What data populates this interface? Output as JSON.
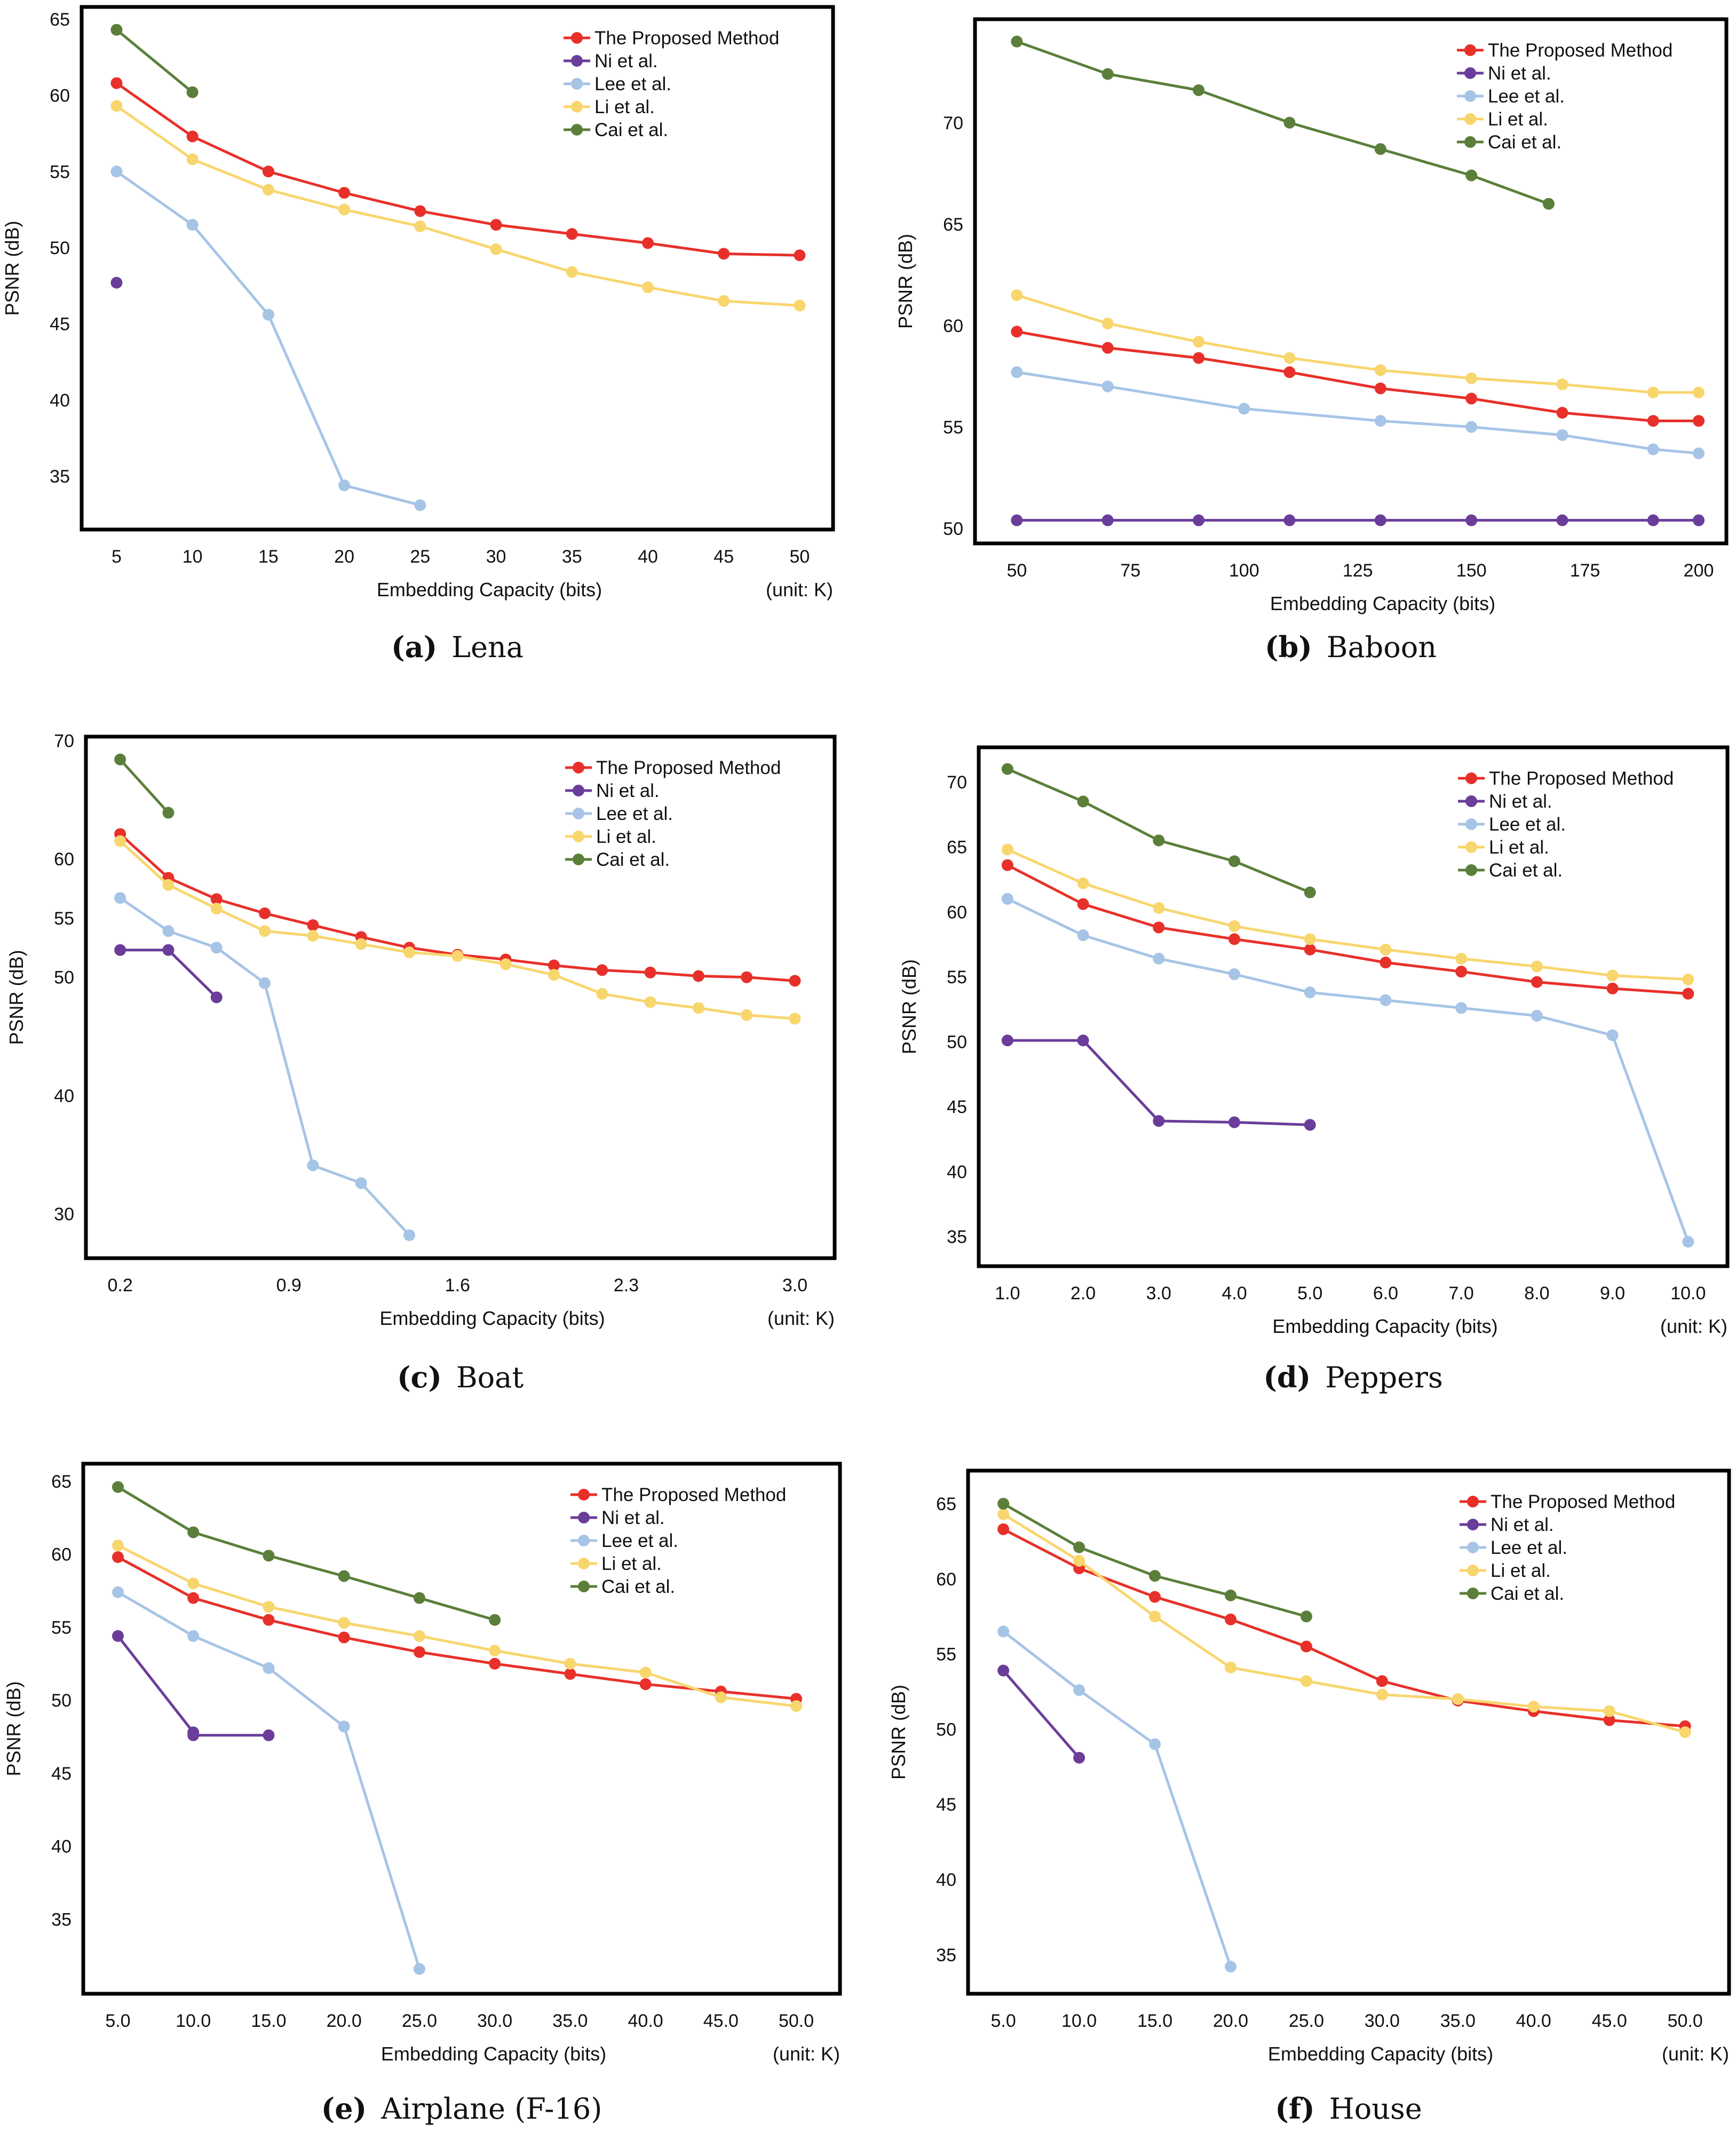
{
  "colors": {
    "The Proposed Method": "#e8302a",
    "Ni et al.": "#6a3d9a",
    "Lee et al.": "#a6c4e6",
    "Li et al.": "#f8d66e",
    "Cai et al.": "#5b7f3a"
  },
  "chart_data": [
    {
      "type": "line",
      "caption_letter": "(a)",
      "caption_name": "Lena",
      "xlabel": "Embedding Capacity (bits)",
      "ylabel": "PSNR (dB)",
      "unit_note": "(unit: K)",
      "xlim": [
        2.7,
        52.2
      ],
      "ylim": [
        31.5,
        65.8
      ],
      "grid": false,
      "legend": "top-right",
      "xticks": [
        [
          5,
          "5"
        ],
        [
          10,
          "10"
        ],
        [
          15,
          "15"
        ],
        [
          20,
          "20"
        ],
        [
          25,
          "25"
        ],
        [
          30,
          "30"
        ],
        [
          35,
          "35"
        ],
        [
          40,
          "40"
        ],
        [
          45,
          "45"
        ],
        [
          50,
          "50"
        ]
      ],
      "yticks": [
        [
          35,
          "35"
        ],
        [
          40,
          "40"
        ],
        [
          45,
          "45"
        ],
        [
          50,
          "50"
        ],
        [
          55,
          "55"
        ],
        [
          60,
          "60"
        ],
        [
          65,
          "65"
        ]
      ],
      "series": [
        {
          "name": "The Proposed Method",
          "x": [
            5,
            10,
            15,
            20,
            25,
            30,
            35,
            40,
            45,
            50
          ],
          "y": [
            60.8,
            57.3,
            55.0,
            53.6,
            52.4,
            51.5,
            50.9,
            50.3,
            49.6,
            49.5
          ]
        },
        {
          "name": "Ni et al.",
          "x": [
            5
          ],
          "y": [
            47.7
          ]
        },
        {
          "name": "Lee et al.",
          "x": [
            5,
            10,
            15,
            20,
            25
          ],
          "y": [
            55.0,
            51.5,
            45.6,
            34.4,
            33.1
          ]
        },
        {
          "name": "Li et al.",
          "x": [
            5,
            10,
            15,
            20,
            25,
            30,
            35,
            40,
            45,
            50
          ],
          "y": [
            59.3,
            55.8,
            53.8,
            52.5,
            51.4,
            49.9,
            48.4,
            47.4,
            46.5,
            46.2
          ]
        },
        {
          "name": "Cai et al.",
          "x": [
            5,
            10
          ],
          "y": [
            64.3,
            60.2
          ]
        }
      ]
    },
    {
      "type": "line",
      "caption_letter": "(b)",
      "caption_name": "Baboon",
      "xlabel": "Embedding Capacity (bits)",
      "ylabel": "PSNR (dB)",
      "unit_note": "",
      "xlim": [
        40.8,
        206.1
      ],
      "ylim": [
        49.26,
        75.1
      ],
      "grid": false,
      "legend": "top-right",
      "xticks": [
        [
          50,
          "50"
        ],
        [
          75,
          "75"
        ],
        [
          100,
          "100"
        ],
        [
          125,
          "125"
        ],
        [
          150,
          "150"
        ],
        [
          175,
          "175"
        ],
        [
          200,
          "200"
        ]
      ],
      "yticks": [
        [
          50,
          "50"
        ],
        [
          55,
          "55"
        ],
        [
          60,
          "60"
        ],
        [
          65,
          "65"
        ],
        [
          70,
          "70"
        ]
      ],
      "series": [
        {
          "name": "The Proposed Method",
          "x": [
            50,
            70,
            90,
            110,
            130,
            150,
            170,
            190,
            200
          ],
          "y": [
            59.7,
            58.9,
            58.4,
            57.7,
            56.9,
            56.4,
            55.7,
            55.3,
            55.3
          ]
        },
        {
          "name": "Ni et al.",
          "x": [
            50,
            70,
            90,
            110,
            130,
            150,
            170,
            190,
            200
          ],
          "y": [
            50.4,
            50.4,
            50.4,
            50.4,
            50.4,
            50.4,
            50.4,
            50.4,
            50.4
          ]
        },
        {
          "name": "Lee et al.",
          "x": [
            50,
            70,
            100,
            130,
            150,
            170,
            190,
            200
          ],
          "y": [
            57.7,
            57.0,
            55.9,
            55.3,
            55.0,
            54.6,
            53.9,
            53.7
          ]
        },
        {
          "name": "Li et al.",
          "x": [
            50,
            70,
            90,
            110,
            130,
            150,
            170,
            190,
            200
          ],
          "y": [
            61.5,
            60.1,
            59.2,
            58.4,
            57.8,
            57.4,
            57.1,
            56.7,
            56.7
          ]
        },
        {
          "name": "Cai et al.",
          "x": [
            50,
            70,
            90,
            110,
            130,
            150,
            167
          ],
          "y": [
            74.0,
            72.4,
            71.6,
            70.0,
            68.7,
            67.4,
            66.0
          ]
        }
      ]
    },
    {
      "type": "line",
      "caption_letter": "(c)",
      "caption_name": "Boat",
      "xlabel": "Embedding Capacity (bits)",
      "ylabel": "PSNR (dB)",
      "unit_note": "(unit: K)",
      "xlim": [
        0.058,
        3.165
      ],
      "ylim": [
        26.26,
        70.33
      ],
      "grid": false,
      "legend": "top-right",
      "xticks": [
        [
          0.2,
          "0.2"
        ],
        [
          0.9,
          "0.9"
        ],
        [
          1.6,
          "1.6"
        ],
        [
          2.3,
          "2.3"
        ],
        [
          3.0,
          "3.0"
        ]
      ],
      "yticks": [
        [
          30,
          "30"
        ],
        [
          40,
          "40"
        ],
        [
          50,
          "50"
        ],
        [
          55,
          "55"
        ],
        [
          60,
          "60"
        ],
        [
          70,
          "70"
        ]
      ],
      "series": [
        {
          "name": "The Proposed Method",
          "x": [
            0.2,
            0.4,
            0.6,
            0.8,
            1.0,
            1.2,
            1.4,
            1.6,
            1.8,
            2.0,
            2.2,
            2.4,
            2.6,
            2.8,
            3.0
          ],
          "y": [
            62.1,
            58.4,
            56.6,
            55.4,
            54.4,
            53.4,
            52.5,
            51.9,
            51.5,
            51.0,
            50.6,
            50.4,
            50.1,
            50.0,
            49.7
          ]
        },
        {
          "name": "Ni et al.",
          "x": [
            0.2,
            0.4,
            0.6
          ],
          "y": [
            52.3,
            52.3,
            48.3
          ]
        },
        {
          "name": "Lee et al.",
          "x": [
            0.2,
            0.4,
            0.6,
            0.8,
            1.0,
            1.2,
            1.4
          ],
          "y": [
            56.7,
            53.9,
            52.5,
            49.5,
            34.1,
            32.6,
            28.2
          ]
        },
        {
          "name": "Li et al.",
          "x": [
            0.2,
            0.4,
            0.6,
            0.8,
            1.0,
            1.2,
            1.4,
            1.6,
            1.8,
            2.0,
            2.2,
            2.4,
            2.6,
            2.8,
            3.0
          ],
          "y": [
            61.5,
            57.8,
            55.8,
            53.9,
            53.5,
            52.8,
            52.1,
            51.8,
            51.1,
            50.2,
            48.6,
            47.9,
            47.4,
            46.8,
            46.5
          ]
        },
        {
          "name": "Cai et al.",
          "x": [
            0.2,
            0.4
          ],
          "y": [
            68.4,
            63.9
          ]
        }
      ]
    },
    {
      "type": "line",
      "caption_letter": "(d)",
      "caption_name": "Peppers",
      "xlabel": "Embedding Capacity (bits)",
      "ylabel": "PSNR (dB)",
      "unit_note": "(unit: K)",
      "xlim": [
        0.62,
        10.52
      ],
      "ylim": [
        32.72,
        72.67
      ],
      "grid": false,
      "legend": "top-right",
      "xticks": [
        [
          1,
          "1.0"
        ],
        [
          2,
          "2.0"
        ],
        [
          3,
          "3.0"
        ],
        [
          4,
          "4.0"
        ],
        [
          5,
          "5.0"
        ],
        [
          6,
          "6.0"
        ],
        [
          7,
          "7.0"
        ],
        [
          8,
          "8.0"
        ],
        [
          9,
          "9.0"
        ],
        [
          10,
          "10.0"
        ]
      ],
      "yticks": [
        [
          35,
          "35"
        ],
        [
          40,
          "40"
        ],
        [
          45,
          "45"
        ],
        [
          50,
          "50"
        ],
        [
          55,
          "55"
        ],
        [
          60,
          "60"
        ],
        [
          65,
          "65"
        ],
        [
          70,
          "70"
        ]
      ],
      "series": [
        {
          "name": "The Proposed Method",
          "x": [
            1,
            2,
            3,
            4,
            5,
            6,
            7,
            8,
            9,
            10
          ],
          "y": [
            63.6,
            60.6,
            58.8,
            57.9,
            57.1,
            56.1,
            55.4,
            54.6,
            54.1,
            53.7
          ]
        },
        {
          "name": "Ni et al.",
          "x": [
            1,
            2,
            3,
            4,
            5
          ],
          "y": [
            50.1,
            50.1,
            43.9,
            43.8,
            43.6
          ]
        },
        {
          "name": "Lee et al.",
          "x": [
            1,
            2,
            3,
            4,
            5,
            6,
            7,
            8,
            9,
            10
          ],
          "y": [
            61.0,
            58.2,
            56.4,
            55.2,
            53.8,
            53.2,
            52.6,
            52.0,
            50.5,
            34.6
          ]
        },
        {
          "name": "Li et al.",
          "x": [
            1,
            2,
            3,
            4,
            5,
            6,
            7,
            8,
            9,
            10
          ],
          "y": [
            64.8,
            62.2,
            60.3,
            58.9,
            57.9,
            57.1,
            56.4,
            55.8,
            55.1,
            54.8
          ]
        },
        {
          "name": "Cai et al.",
          "x": [
            1,
            2,
            3,
            4,
            5
          ],
          "y": [
            71.0,
            68.5,
            65.5,
            63.9,
            61.5
          ]
        }
      ]
    },
    {
      "type": "line",
      "caption_letter": "(e)",
      "caption_name": "Airplane (F-16)",
      "xlabel": "Embedding Capacity (bits)",
      "ylabel": "PSNR (dB)",
      "unit_note": "(unit: K)",
      "xlim": [
        2.7,
        52.9
      ],
      "ylim": [
        29.9,
        66.2
      ],
      "grid": false,
      "legend": "top-right",
      "xticks": [
        [
          5,
          "5.0"
        ],
        [
          10,
          "10.0"
        ],
        [
          15,
          "15.0"
        ],
        [
          20,
          "20.0"
        ],
        [
          25,
          "25.0"
        ],
        [
          30,
          "30.0"
        ],
        [
          35,
          "35.0"
        ],
        [
          40,
          "40.0"
        ],
        [
          45,
          "45.0"
        ],
        [
          50,
          "50.0"
        ]
      ],
      "yticks": [
        [
          35,
          "35"
        ],
        [
          40,
          "40"
        ],
        [
          45,
          "45"
        ],
        [
          50,
          "50"
        ],
        [
          55,
          "55"
        ],
        [
          60,
          "60"
        ],
        [
          65,
          "65"
        ]
      ],
      "series": [
        {
          "name": "The Proposed Method",
          "x": [
            5,
            10,
            15,
            20,
            25,
            30,
            35,
            40,
            45,
            50
          ],
          "y": [
            59.8,
            57.0,
            55.5,
            54.3,
            53.3,
            52.5,
            51.8,
            51.1,
            50.6,
            50.1
          ]
        },
        {
          "name": "Ni et al.",
          "x": [
            5,
            10,
            10,
            15
          ],
          "y": [
            54.4,
            47.8,
            47.6,
            47.6
          ]
        },
        {
          "name": "Lee et al.",
          "x": [
            5,
            10,
            15,
            20,
            25
          ],
          "y": [
            57.4,
            54.4,
            52.2,
            48.2,
            31.6
          ]
        },
        {
          "name": "Li et al.",
          "x": [
            5,
            10,
            15,
            20,
            25,
            30,
            35,
            40,
            45,
            50
          ],
          "y": [
            60.6,
            58.0,
            56.4,
            55.3,
            54.4,
            53.4,
            52.5,
            51.9,
            50.2,
            49.6
          ]
        },
        {
          "name": "Cai et al.",
          "x": [
            5,
            10,
            15,
            20,
            25,
            30
          ],
          "y": [
            64.6,
            61.5,
            59.9,
            58.5,
            57.0,
            55.5
          ]
        }
      ]
    },
    {
      "type": "line",
      "caption_letter": "(f)",
      "caption_name": "House",
      "xlabel": "Embedding Capacity (bits)",
      "ylabel": "PSNR (dB)",
      "unit_note": "(unit: K)",
      "xlim": [
        2.67,
        52.9
      ],
      "ylim": [
        32.4,
        67.2
      ],
      "grid": false,
      "legend": "top-right",
      "xticks": [
        [
          5,
          "5.0"
        ],
        [
          10,
          "10.0"
        ],
        [
          15,
          "15.0"
        ],
        [
          20,
          "20.0"
        ],
        [
          25,
          "25.0"
        ],
        [
          30,
          "30.0"
        ],
        [
          35,
          "35.0"
        ],
        [
          40,
          "40.0"
        ],
        [
          45,
          "45.0"
        ],
        [
          50,
          "50.0"
        ]
      ],
      "yticks": [
        [
          35,
          "35"
        ],
        [
          40,
          "40"
        ],
        [
          45,
          "45"
        ],
        [
          50,
          "50"
        ],
        [
          55,
          "55"
        ],
        [
          60,
          "60"
        ],
        [
          65,
          "65"
        ]
      ],
      "series": [
        {
          "name": "The Proposed Method",
          "x": [
            5,
            10,
            15,
            20,
            25,
            30,
            35,
            40,
            45,
            50
          ],
          "y": [
            63.3,
            60.7,
            58.8,
            57.3,
            55.5,
            53.2,
            51.9,
            51.2,
            50.6,
            50.2
          ]
        },
        {
          "name": "Ni et al.",
          "x": [
            5,
            10
          ],
          "y": [
            53.9,
            48.1
          ]
        },
        {
          "name": "Lee et al.",
          "x": [
            5,
            10,
            15,
            20
          ],
          "y": [
            56.5,
            52.6,
            49.0,
            34.2
          ]
        },
        {
          "name": "Li et al.",
          "x": [
            5,
            10,
            15,
            20,
            25,
            30,
            35,
            40,
            45,
            50
          ],
          "y": [
            64.3,
            61.2,
            57.5,
            54.1,
            53.2,
            52.3,
            52.0,
            51.5,
            51.2,
            49.8
          ]
        },
        {
          "name": "Cai et al.",
          "x": [
            5,
            10,
            15,
            20,
            25
          ],
          "y": [
            65.0,
            62.1,
            60.2,
            58.9,
            57.5
          ]
        }
      ]
    }
  ]
}
